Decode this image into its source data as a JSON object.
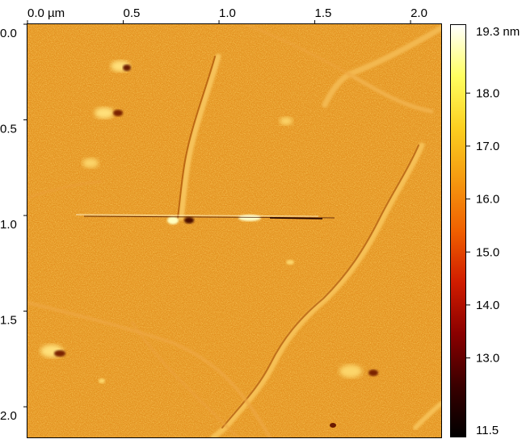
{
  "image": {
    "x_unit": "µm",
    "x_ticks": [
      "0.0 µm",
      "0.5",
      "1.0",
      "1.5",
      "2.0"
    ],
    "x_tick_values": [
      0.0,
      0.5,
      1.0,
      1.5,
      2.0
    ],
    "y_ticks": [
      "0.0",
      "0.5",
      "1.0",
      "1.5",
      "2.0"
    ],
    "y_tick_values": [
      0.0,
      0.5,
      1.0,
      1.5,
      2.0
    ],
    "extent": [
      0,
      2.16
    ]
  },
  "colorbar": {
    "unit": "nm",
    "top_label": "19.3 nm",
    "ticks": [
      "18.0",
      "17.0",
      "16.0",
      "15.0",
      "14.0",
      "13.0"
    ],
    "tick_values": [
      18.0,
      17.0,
      16.0,
      15.0,
      14.0,
      13.0
    ],
    "bottom_label": "11.5",
    "min": 11.5,
    "max": 19.3,
    "colors": [
      "#000000",
      "#3a0000",
      "#8a0000",
      "#d01c00",
      "#f06000",
      "#f59a10",
      "#fcd020",
      "#ffff60",
      "#ffffff"
    ]
  }
}
